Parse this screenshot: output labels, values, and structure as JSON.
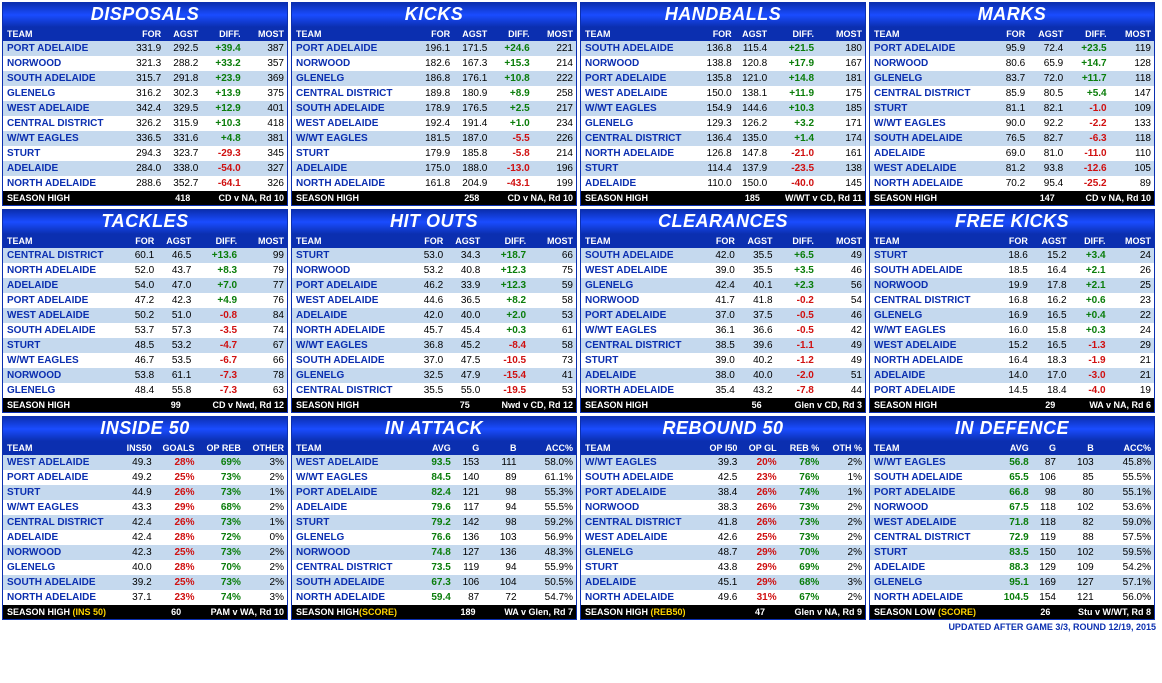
{
  "page_footer": "UPDATED AFTER GAME 3/3, ROUND 12/19, 2015",
  "panels": [
    {
      "title": "DISPOSALS",
      "columns": [
        "TEAM",
        "FOR",
        "AGST",
        "DIFF.",
        "MOST"
      ],
      "rows": [
        [
          "PORT ADELAIDE",
          "331.9",
          "292.5",
          "+39.4",
          "387"
        ],
        [
          "NORWOOD",
          "321.3",
          "288.2",
          "+33.2",
          "357"
        ],
        [
          "SOUTH ADELAIDE",
          "315.7",
          "291.8",
          "+23.9",
          "369"
        ],
        [
          "GLENELG",
          "316.2",
          "302.3",
          "+13.9",
          "375"
        ],
        [
          "WEST ADELAIDE",
          "342.4",
          "329.5",
          "+12.9",
          "401"
        ],
        [
          "CENTRAL DISTRICT",
          "326.2",
          "315.9",
          "+10.3",
          "418"
        ],
        [
          "W/WT EAGLES",
          "336.5",
          "331.6",
          "+4.8",
          "381"
        ],
        [
          "STURT",
          "294.3",
          "323.7",
          "-29.3",
          "345"
        ],
        [
          "ADELAIDE",
          "284.0",
          "338.0",
          "-54.0",
          "327"
        ],
        [
          "NORTH ADELAIDE",
          "288.6",
          "352.7",
          "-64.1",
          "326"
        ]
      ],
      "diffcol": 3,
      "footer": [
        "SEASON HIGH",
        "",
        "418",
        "",
        "CD v NA, Rd 10"
      ]
    },
    {
      "title": "KICKS",
      "columns": [
        "TEAM",
        "FOR",
        "AGST",
        "DIFF.",
        "MOST"
      ],
      "rows": [
        [
          "PORT ADELAIDE",
          "196.1",
          "171.5",
          "+24.6",
          "221"
        ],
        [
          "NORWOOD",
          "182.6",
          "167.3",
          "+15.3",
          "214"
        ],
        [
          "GLENELG",
          "186.8",
          "176.1",
          "+10.8",
          "222"
        ],
        [
          "CENTRAL DISTRICT",
          "189.8",
          "180.9",
          "+8.9",
          "258"
        ],
        [
          "SOUTH ADELAIDE",
          "178.9",
          "176.5",
          "+2.5",
          "217"
        ],
        [
          "WEST ADELAIDE",
          "192.4",
          "191.4",
          "+1.0",
          "234"
        ],
        [
          "W/WT EAGLES",
          "181.5",
          "187.0",
          "-5.5",
          "226"
        ],
        [
          "STURT",
          "179.9",
          "185.8",
          "-5.8",
          "214"
        ],
        [
          "ADELAIDE",
          "175.0",
          "188.0",
          "-13.0",
          "196"
        ],
        [
          "NORTH ADELAIDE",
          "161.8",
          "204.9",
          "-43.1",
          "199"
        ]
      ],
      "diffcol": 3,
      "footer": [
        "SEASON HIGH",
        "",
        "258",
        "",
        "CD v NA, Rd 10"
      ]
    },
    {
      "title": "HANDBALLS",
      "columns": [
        "TEAM",
        "FOR",
        "AGST",
        "DIFF.",
        "MOST"
      ],
      "rows": [
        [
          "SOUTH ADELAIDE",
          "136.8",
          "115.4",
          "+21.5",
          "180"
        ],
        [
          "NORWOOD",
          "138.8",
          "120.8",
          "+17.9",
          "167"
        ],
        [
          "PORT ADELAIDE",
          "135.8",
          "121.0",
          "+14.8",
          "181"
        ],
        [
          "WEST ADELAIDE",
          "150.0",
          "138.1",
          "+11.9",
          "175"
        ],
        [
          "W/WT EAGLES",
          "154.9",
          "144.6",
          "+10.3",
          "185"
        ],
        [
          "GLENELG",
          "129.3",
          "126.2",
          "+3.2",
          "171"
        ],
        [
          "CENTRAL DISTRICT",
          "136.4",
          "135.0",
          "+1.4",
          "174"
        ],
        [
          "NORTH ADELAIDE",
          "126.8",
          "147.8",
          "-21.0",
          "161"
        ],
        [
          "STURT",
          "114.4",
          "137.9",
          "-23.5",
          "138"
        ],
        [
          "ADELAIDE",
          "110.0",
          "150.0",
          "-40.0",
          "145"
        ]
      ],
      "diffcol": 3,
      "footer": [
        "SEASON HIGH",
        "",
        "185",
        "",
        "W/WT v CD, Rd 11"
      ]
    },
    {
      "title": "MARKS",
      "columns": [
        "TEAM",
        "FOR",
        "AGST",
        "DIFF.",
        "MOST"
      ],
      "rows": [
        [
          "PORT ADELAIDE",
          "95.9",
          "72.4",
          "+23.5",
          "119"
        ],
        [
          "NORWOOD",
          "80.6",
          "65.9",
          "+14.7",
          "128"
        ],
        [
          "GLENELG",
          "83.7",
          "72.0",
          "+11.7",
          "118"
        ],
        [
          "CENTRAL DISTRICT",
          "85.9",
          "80.5",
          "+5.4",
          "147"
        ],
        [
          "STURT",
          "81.1",
          "82.1",
          "-1.0",
          "109"
        ],
        [
          "W/WT EAGLES",
          "90.0",
          "92.2",
          "-2.2",
          "133"
        ],
        [
          "SOUTH ADELAIDE",
          "76.5",
          "82.7",
          "-6.3",
          "118"
        ],
        [
          "ADELAIDE",
          "69.0",
          "81.0",
          "-11.0",
          "110"
        ],
        [
          "WEST ADELAIDE",
          "81.2",
          "93.8",
          "-12.6",
          "105"
        ],
        [
          "NORTH ADELAIDE",
          "70.2",
          "95.4",
          "-25.2",
          "89"
        ]
      ],
      "diffcol": 3,
      "footer": [
        "SEASON HIGH",
        "",
        "147",
        "",
        "CD v NA, Rd 10"
      ]
    },
    {
      "title": "TACKLES",
      "columns": [
        "TEAM",
        "FOR",
        "AGST",
        "DIFF.",
        "MOST"
      ],
      "rows": [
        [
          "CENTRAL DISTRICT",
          "60.1",
          "46.5",
          "+13.6",
          "99"
        ],
        [
          "NORTH ADELAIDE",
          "52.0",
          "43.7",
          "+8.3",
          "79"
        ],
        [
          "ADELAIDE",
          "54.0",
          "47.0",
          "+7.0",
          "77"
        ],
        [
          "PORT ADELAIDE",
          "47.2",
          "42.3",
          "+4.9",
          "76"
        ],
        [
          "WEST ADELAIDE",
          "50.2",
          "51.0",
          "-0.8",
          "84"
        ],
        [
          "SOUTH ADELAIDE",
          "53.7",
          "57.3",
          "-3.5",
          "74"
        ],
        [
          "STURT",
          "48.5",
          "53.2",
          "-4.7",
          "67"
        ],
        [
          "W/WT EAGLES",
          "46.7",
          "53.5",
          "-6.7",
          "66"
        ],
        [
          "NORWOOD",
          "53.8",
          "61.1",
          "-7.3",
          "78"
        ],
        [
          "GLENELG",
          "48.4",
          "55.8",
          "-7.3",
          "63"
        ]
      ],
      "diffcol": 3,
      "footer": [
        "SEASON HIGH",
        "",
        "99",
        "",
        "CD v Nwd, Rd 12"
      ]
    },
    {
      "title": "HIT OUTS",
      "columns": [
        "TEAM",
        "FOR",
        "AGST",
        "DIFF.",
        "MOST"
      ],
      "rows": [
        [
          "STURT",
          "53.0",
          "34.3",
          "+18.7",
          "66"
        ],
        [
          "NORWOOD",
          "53.2",
          "40.8",
          "+12.3",
          "75"
        ],
        [
          "PORT ADELAIDE",
          "46.2",
          "33.9",
          "+12.3",
          "59"
        ],
        [
          "WEST ADELAIDE",
          "44.6",
          "36.5",
          "+8.2",
          "58"
        ],
        [
          "ADELAIDE",
          "42.0",
          "40.0",
          "+2.0",
          "53"
        ],
        [
          "NORTH ADELAIDE",
          "45.7",
          "45.4",
          "+0.3",
          "61"
        ],
        [
          "W/WT EAGLES",
          "36.8",
          "45.2",
          "-8.4",
          "58"
        ],
        [
          "SOUTH ADELAIDE",
          "37.0",
          "47.5",
          "-10.5",
          "73"
        ],
        [
          "GLENELG",
          "32.5",
          "47.9",
          "-15.4",
          "41"
        ],
        [
          "CENTRAL DISTRICT",
          "35.5",
          "55.0",
          "-19.5",
          "53"
        ]
      ],
      "diffcol": 3,
      "footer": [
        "SEASON HIGH",
        "",
        "75",
        "",
        "Nwd v CD, Rd 12"
      ]
    },
    {
      "title": "CLEARANCES",
      "columns": [
        "TEAM",
        "FOR",
        "AGST",
        "DIFF.",
        "MOST"
      ],
      "rows": [
        [
          "SOUTH ADELAIDE",
          "42.0",
          "35.5",
          "+6.5",
          "49"
        ],
        [
          "WEST ADELAIDE",
          "39.0",
          "35.5",
          "+3.5",
          "46"
        ],
        [
          "GLENELG",
          "42.4",
          "40.1",
          "+2.3",
          "56"
        ],
        [
          "NORWOOD",
          "41.7",
          "41.8",
          "-0.2",
          "54"
        ],
        [
          "PORT ADELAIDE",
          "37.0",
          "37.5",
          "-0.5",
          "46"
        ],
        [
          "W/WT EAGLES",
          "36.1",
          "36.6",
          "-0.5",
          "42"
        ],
        [
          "CENTRAL DISTRICT",
          "38.5",
          "39.6",
          "-1.1",
          "49"
        ],
        [
          "STURT",
          "39.0",
          "40.2",
          "-1.2",
          "49"
        ],
        [
          "ADELAIDE",
          "38.0",
          "40.0",
          "-2.0",
          "51"
        ],
        [
          "NORTH ADELAIDE",
          "35.4",
          "43.2",
          "-7.8",
          "44"
        ]
      ],
      "diffcol": 3,
      "footer": [
        "SEASON HIGH",
        "",
        "56",
        "",
        "Glen v CD, Rd 3"
      ]
    },
    {
      "title": "FREE KICKS",
      "columns": [
        "TEAM",
        "FOR",
        "AGST",
        "DIFF.",
        "MOST"
      ],
      "rows": [
        [
          "STURT",
          "18.6",
          "15.2",
          "+3.4",
          "24"
        ],
        [
          "SOUTH ADELAIDE",
          "18.5",
          "16.4",
          "+2.1",
          "26"
        ],
        [
          "NORWOOD",
          "19.9",
          "17.8",
          "+2.1",
          "25"
        ],
        [
          "CENTRAL DISTRICT",
          "16.8",
          "16.2",
          "+0.6",
          "23"
        ],
        [
          "GLENELG",
          "16.9",
          "16.5",
          "+0.4",
          "22"
        ],
        [
          "W/WT EAGLES",
          "16.0",
          "15.8",
          "+0.3",
          "24"
        ],
        [
          "WEST ADELAIDE",
          "15.2",
          "16.5",
          "-1.3",
          "29"
        ],
        [
          "NORTH ADELAIDE",
          "16.4",
          "18.3",
          "-1.9",
          "21"
        ],
        [
          "ADELAIDE",
          "14.0",
          "17.0",
          "-3.0",
          "21"
        ],
        [
          "PORT ADELAIDE",
          "14.5",
          "18.4",
          "-4.0",
          "19"
        ]
      ],
      "diffcol": 3,
      "footer": [
        "SEASON HIGH",
        "",
        "29",
        "",
        "WA v NA, Rd 6"
      ]
    },
    {
      "title": "INSIDE 50",
      "columns": [
        "TEAM",
        "INS50",
        "GOALS",
        "OP REB",
        "OTHER"
      ],
      "rows": [
        [
          "WEST ADELAIDE",
          "49.3",
          "28%",
          "69%",
          "3%"
        ],
        [
          "PORT ADELAIDE",
          "49.2",
          "25%",
          "73%",
          "2%"
        ],
        [
          "STURT",
          "44.9",
          "26%",
          "73%",
          "1%"
        ],
        [
          "W/WT EAGLES",
          "43.3",
          "29%",
          "68%",
          "2%"
        ],
        [
          "CENTRAL DISTRICT",
          "42.4",
          "26%",
          "73%",
          "1%"
        ],
        [
          "ADELAIDE",
          "42.4",
          "28%",
          "72%",
          "0%"
        ],
        [
          "NORWOOD",
          "42.3",
          "25%",
          "73%",
          "2%"
        ],
        [
          "GLENELG",
          "40.0",
          "28%",
          "70%",
          "2%"
        ],
        [
          "SOUTH ADELAIDE",
          "39.2",
          "25%",
          "73%",
          "2%"
        ],
        [
          "NORTH ADELAIDE",
          "37.1",
          "23%",
          "74%",
          "3%"
        ]
      ],
      "diffcol": 2,
      "pctcols": [
        2,
        3
      ],
      "footer_yellow": "(INS 50)",
      "footer": [
        "SEASON HIGH ",
        "",
        "60",
        "",
        "PAM v WA, Rd 10"
      ]
    },
    {
      "title": "IN ATTACK",
      "columns": [
        "TEAM",
        "AVG",
        "G",
        "B",
        "ACC%"
      ],
      "rows": [
        [
          "WEST ADELAIDE",
          "93.5",
          "153",
          "111",
          "58.0%"
        ],
        [
          "W/WT EAGLES",
          "84.5",
          "140",
          "89",
          "61.1%"
        ],
        [
          "PORT ADELAIDE",
          "82.4",
          "121",
          "98",
          "55.3%"
        ],
        [
          "ADELAIDE",
          "79.6",
          "117",
          "94",
          "55.5%"
        ],
        [
          "STURT",
          "79.2",
          "142",
          "98",
          "59.2%"
        ],
        [
          "GLENELG",
          "76.6",
          "136",
          "103",
          "56.9%"
        ],
        [
          "NORWOOD",
          "74.8",
          "127",
          "136",
          "48.3%"
        ],
        [
          "CENTRAL DISTRICT",
          "73.5",
          "119",
          "94",
          "55.9%"
        ],
        [
          "SOUTH ADELAIDE",
          "67.3",
          "106",
          "104",
          "50.5%"
        ],
        [
          "NORTH ADELAIDE",
          "59.4",
          "87",
          "72",
          "54.7%"
        ]
      ],
      "diffcol": 1,
      "footer_yellow": "(SCORE)",
      "footer": [
        "SEASON HIGH",
        "",
        "189",
        "",
        "WA v Glen, Rd 7"
      ]
    },
    {
      "title": "REBOUND 50",
      "columns": [
        "TEAM",
        "OP I50",
        "OP GL",
        "REB %",
        "OTH %"
      ],
      "rows": [
        [
          "W/WT EAGLES",
          "39.3",
          "20%",
          "78%",
          "2%"
        ],
        [
          "SOUTH ADELAIDE",
          "42.5",
          "23%",
          "76%",
          "1%"
        ],
        [
          "PORT ADELAIDE",
          "38.4",
          "26%",
          "74%",
          "1%"
        ],
        [
          "NORWOOD",
          "38.3",
          "26%",
          "73%",
          "2%"
        ],
        [
          "CENTRAL DISTRICT",
          "41.8",
          "26%",
          "73%",
          "2%"
        ],
        [
          "WEST ADELAIDE",
          "42.6",
          "25%",
          "73%",
          "2%"
        ],
        [
          "GLENELG",
          "48.7",
          "29%",
          "70%",
          "2%"
        ],
        [
          "STURT",
          "43.8",
          "29%",
          "69%",
          "2%"
        ],
        [
          "ADELAIDE",
          "45.1",
          "29%",
          "68%",
          "3%"
        ],
        [
          "NORTH ADELAIDE",
          "49.6",
          "31%",
          "67%",
          "2%"
        ]
      ],
      "diffcol": 3,
      "pctcols": [
        2,
        3
      ],
      "footer_yellow": "(REB50)",
      "footer": [
        "SEASON HIGH ",
        "",
        "47",
        "",
        "Glen v NA, Rd 9"
      ]
    },
    {
      "title": "IN DEFENCE",
      "columns": [
        "TEAM",
        "AVG",
        "G",
        "B",
        "ACC%"
      ],
      "rows": [
        [
          "W/WT EAGLES",
          "56.8",
          "87",
          "103",
          "45.8%"
        ],
        [
          "SOUTH ADELAIDE",
          "65.5",
          "106",
          "85",
          "55.5%"
        ],
        [
          "PORT ADELAIDE",
          "66.8",
          "98",
          "80",
          "55.1%"
        ],
        [
          "NORWOOD",
          "67.5",
          "118",
          "102",
          "53.6%"
        ],
        [
          "WEST ADELAIDE",
          "71.8",
          "118",
          "82",
          "59.0%"
        ],
        [
          "CENTRAL DISTRICT",
          "72.9",
          "119",
          "88",
          "57.5%"
        ],
        [
          "STURT",
          "83.5",
          "150",
          "102",
          "59.5%"
        ],
        [
          "ADELAIDE",
          "88.3",
          "129",
          "109",
          "54.2%"
        ],
        [
          "GLENELG",
          "95.1",
          "169",
          "127",
          "57.1%"
        ],
        [
          "NORTH ADELAIDE",
          "104.5",
          "154",
          "121",
          "56.0%"
        ]
      ],
      "diffcol": 1,
      "footer_yellow": "(SCORE)",
      "footer": [
        "SEASON LOW ",
        "",
        "26",
        "",
        "Stu v W/WT, Rd 8"
      ]
    }
  ]
}
